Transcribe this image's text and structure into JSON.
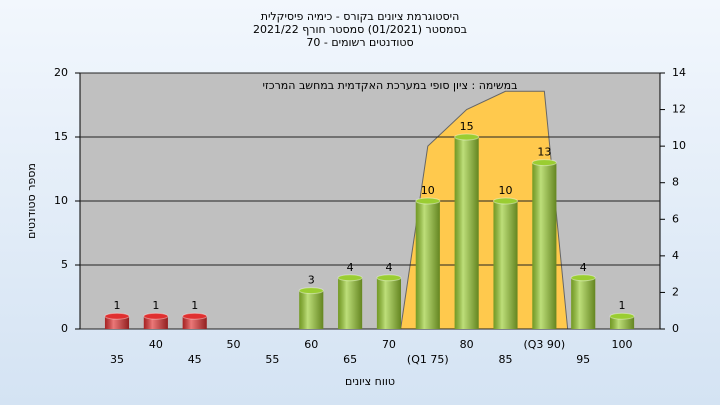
{
  "chart_data": {
    "type": "bar",
    "title_lines": [
      "היסטוגרמת ציונים בקורס - כימיה פיסיקלית",
      "בסמסטר  (01/2021)  סמסטר חורף 2021/22",
      "סטודנטים רשומים - 70"
    ],
    "annotation": "במשימה : ציון סופי במערכת האקדמית במחשב המרכזי",
    "y_label": "מספר סטודנטים",
    "x_label": "טווח ציונים",
    "categories": [
      "35",
      "40",
      "45",
      "50",
      "55",
      "60",
      "65",
      "70",
      "(Q1 75)",
      "80",
      "85",
      "(Q3 90)",
      "95",
      "100"
    ],
    "values": [
      1,
      1,
      1,
      0,
      0,
      3,
      4,
      4,
      10,
      15,
      10,
      13,
      4,
      1
    ],
    "colors": [
      "#e03030",
      "#e03030",
      "#e03030",
      "#9acd32",
      "#9acd32",
      "#9acd32",
      "#9acd32",
      "#9acd32",
      "#9acd32",
      "#9acd32",
      "#9acd32",
      "#9acd32",
      "#9acd32",
      "#9acd32"
    ],
    "area": {
      "axis": "y2",
      "color": "#ffc94d",
      "values": [
        null,
        null,
        null,
        null,
        null,
        null,
        null,
        null,
        10,
        12,
        13,
        13,
        null,
        null
      ]
    },
    "ylim": [
      0,
      20
    ],
    "yticks": [
      0,
      5,
      10,
      15,
      20
    ],
    "y2lim": [
      0,
      14
    ],
    "y2ticks": [
      0,
      2,
      4,
      6,
      8,
      10,
      12,
      14
    ],
    "grid": true
  }
}
